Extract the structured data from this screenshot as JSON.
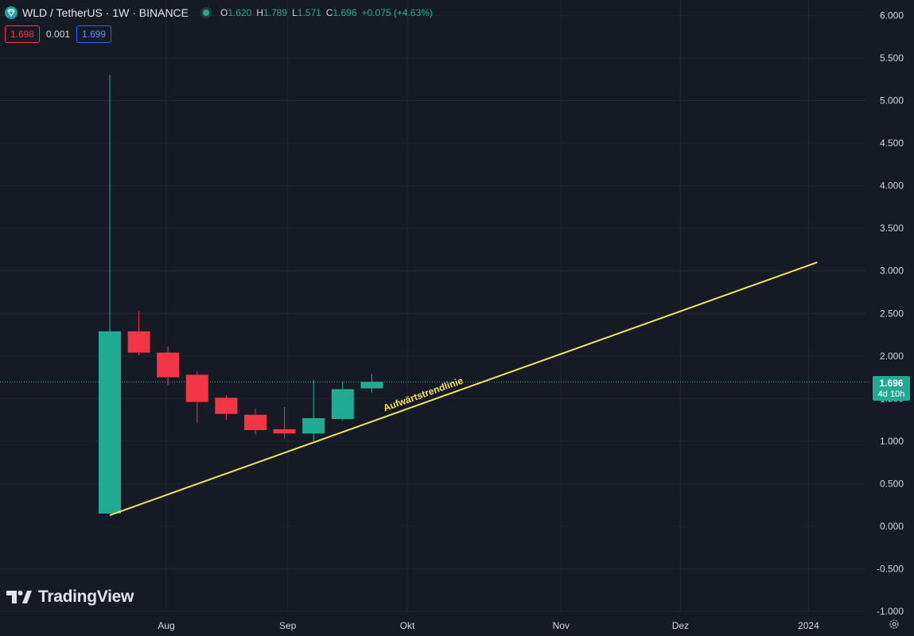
{
  "header": {
    "title": "WLD / TetherUS · 1W · BINANCE",
    "ohlc": [
      {
        "k": "O",
        "v": "1.620"
      },
      {
        "k": "H",
        "v": "1.789"
      },
      {
        "k": "L",
        "v": "1.571"
      },
      {
        "k": "C",
        "v": "1.696"
      },
      {
        "k": "",
        "v": "+0.075 (+4.63%)"
      }
    ],
    "icon": "worldcoin-logo-icon"
  },
  "quote": {
    "sell": "1.698",
    "spread": "0.001",
    "buy": "1.699"
  },
  "last_price": {
    "price": "1.696",
    "countdown": "4d 10h",
    "value": 1.696
  },
  "brand": {
    "name": "TradingView"
  },
  "colors": {
    "background": "#161a25",
    "grid": "#232733",
    "up": "#22ab94",
    "down": "#f23645",
    "trendline": "#f2e35a"
  },
  "chart_data": {
    "type": "candlestick",
    "title": "WLD / TetherUS · 1W · BINANCE",
    "ylim": [
      -1.0,
      6.0
    ],
    "y_ticks": [
      "6.000",
      "5.500",
      "5.000",
      "4.500",
      "4.000",
      "3.500",
      "3.000",
      "2.500",
      "2.000",
      "1.500",
      "1.000",
      "0.500",
      "0.000",
      "-0.500",
      "-1.000"
    ],
    "x_labels": [
      "Aug",
      "Sep",
      "Okt",
      "Nov",
      "Dez",
      "2024"
    ],
    "x_label_weeks": [
      1.94,
      6.11,
      10.22,
      15.5,
      19.6,
      24.0
    ],
    "candles": [
      {
        "week": 0,
        "o": 0.15,
        "h": 5.3,
        "l": 0.15,
        "c": 2.29
      },
      {
        "week": 1,
        "o": 2.29,
        "h": 2.53,
        "l": 2.01,
        "c": 2.04
      },
      {
        "week": 2,
        "o": 2.04,
        "h": 2.11,
        "l": 1.66,
        "c": 1.75
      },
      {
        "week": 3,
        "o": 1.78,
        "h": 1.82,
        "l": 1.21,
        "c": 1.46
      },
      {
        "week": 4,
        "o": 1.51,
        "h": 1.54,
        "l": 1.25,
        "c": 1.32
      },
      {
        "week": 5,
        "o": 1.31,
        "h": 1.38,
        "l": 1.08,
        "c": 1.13
      },
      {
        "week": 6,
        "o": 1.14,
        "h": 1.4,
        "l": 1.03,
        "c": 1.09
      },
      {
        "week": 7,
        "o": 1.09,
        "h": 1.72,
        "l": 1.0,
        "c": 1.27
      },
      {
        "week": 8,
        "o": 1.26,
        "h": 1.7,
        "l": 1.24,
        "c": 1.61
      },
      {
        "week": 9,
        "o": 1.62,
        "h": 1.79,
        "l": 1.57,
        "c": 1.696
      }
    ],
    "trendline": {
      "label": "Aufwärtstrendlinie",
      "start": {
        "week": 0,
        "price": 0.13
      },
      "end": {
        "week": 24.3,
        "price": 3.1
      }
    }
  }
}
